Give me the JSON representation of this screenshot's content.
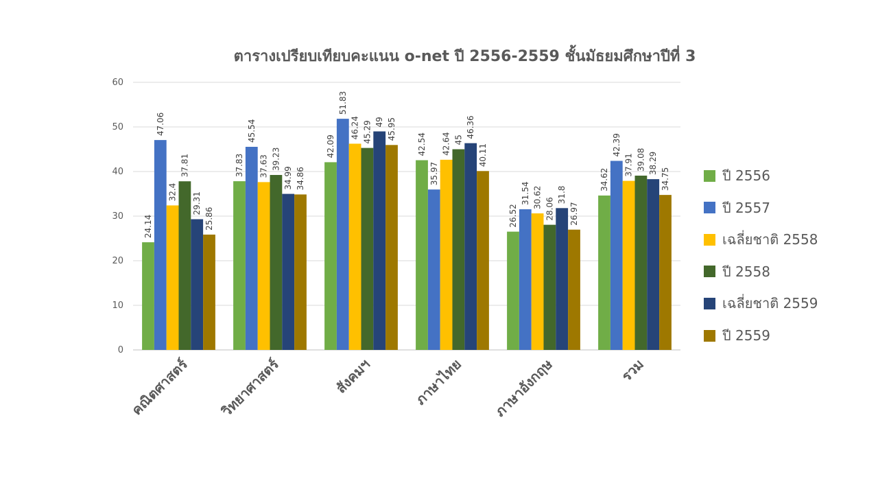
{
  "chart_data": {
    "type": "bar",
    "title": "ตารางเปรียบเทียบคะแนน o-net ปี 2556-2559 ชั้นมัธยมศึกษาปีที่ 3",
    "categories": [
      "คณิตศาสตร์",
      "วิทยาศาสตร์",
      "สังคมฯ",
      "ภาษาไทย",
      "ภาษาอังกฤษ",
      "รวม"
    ],
    "ylim": [
      0,
      60
    ],
    "yticks": [
      0,
      10,
      20,
      30,
      40,
      50,
      60
    ],
    "y_tick_labels": [
      "0",
      "10",
      "20",
      "30",
      "40",
      "50",
      "60"
    ],
    "grid": true,
    "legend_position": "right",
    "series": [
      {
        "name": "ปี 2556",
        "color": "#70AD47",
        "values": [
          24.14,
          37.83,
          42.09,
          42.54,
          26.52,
          34.62
        ],
        "labels": [
          "24.14",
          "37.83",
          "42.09",
          "42.54",
          "26.52",
          "34.62"
        ]
      },
      {
        "name": "ปี 2557",
        "color": "#4472C4",
        "values": [
          47.06,
          45.54,
          51.83,
          35.97,
          31.54,
          42.39
        ],
        "labels": [
          "47.06",
          "45.54",
          "51.83",
          "35.97",
          "31.54",
          "42.39"
        ]
      },
      {
        "name": "เฉลี่ยชาติ 2558",
        "color": "#FFC000",
        "values": [
          32.4,
          37.63,
          46.24,
          42.64,
          30.62,
          37.91
        ],
        "labels": [
          "32.4",
          "37.63",
          "46.24",
          "42.64",
          "30.62",
          "37.91"
        ]
      },
      {
        "name": "ปี 2558",
        "color": "#43682B",
        "values": [
          37.81,
          39.23,
          45.29,
          45,
          28.06,
          39.08
        ],
        "labels": [
          "37.81",
          "39.23",
          "45.29",
          "45",
          "28.06",
          "39.08"
        ]
      },
      {
        "name": "เฉลี่ยชาติ 2559",
        "color": "#264478",
        "values": [
          29.31,
          34.99,
          49,
          46.36,
          31.8,
          38.29
        ],
        "labels": [
          "29.31",
          "34.99",
          "49",
          "46.36",
          "31.8",
          "38.29"
        ]
      },
      {
        "name": "ปี 2559",
        "color": "#9E7800",
        "values": [
          25.86,
          34.86,
          45.95,
          40.11,
          26.97,
          34.75
        ],
        "labels": [
          "25.86",
          "34.86",
          "45.95",
          "40.11",
          "26.97",
          "34.75"
        ]
      }
    ]
  }
}
